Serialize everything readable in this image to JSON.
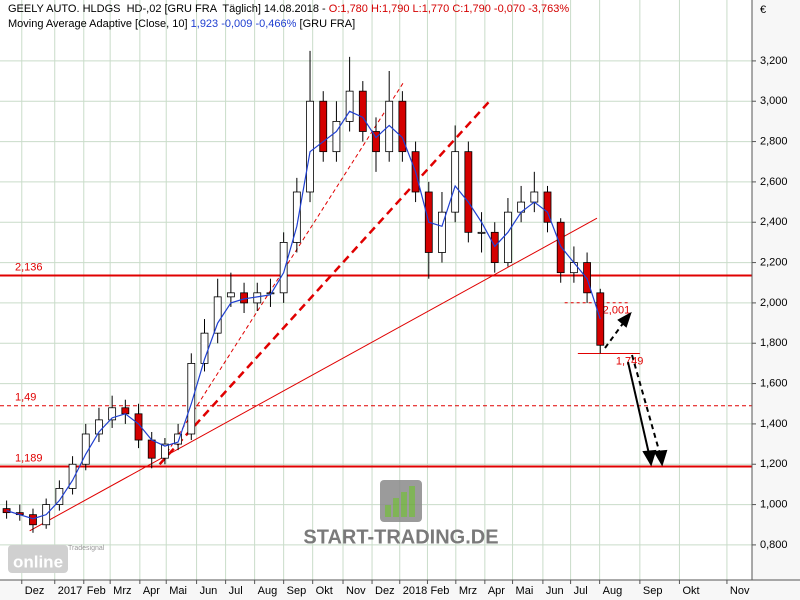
{
  "chart_data": {
    "type": "candlestick",
    "title": "GEELY AUTO. HLDGS  HD-,02 [GRU FRA  Täglich] 14.08.2018 -",
    "title_values": "O:1,780 H:1,790 L:1,770 C:1,790 -0,070 -3,763%",
    "y_unit": "€",
    "x": [
      1,
      3,
      5,
      7,
      9,
      11,
      13,
      15,
      17,
      19,
      21,
      23,
      25,
      27,
      29,
      31,
      33,
      35,
      37,
      39,
      41,
      43,
      45,
      47,
      49,
      51,
      53,
      55,
      57,
      59,
      61,
      63,
      65,
      67,
      69,
      71,
      73,
      75,
      77,
      79,
      81,
      83,
      85,
      87,
      89,
      91
    ],
    "open": [
      0.98,
      0.96,
      0.95,
      0.9,
      1.0,
      1.08,
      1.2,
      1.35,
      1.42,
      1.48,
      1.45,
      1.32,
      1.23,
      1.3,
      1.35,
      1.7,
      1.85,
      2.03,
      2.05,
      2.0,
      2.05,
      2.05,
      2.3,
      2.55,
      3.0,
      2.75,
      2.9,
      3.05,
      2.85,
      2.75,
      3.0,
      2.75,
      2.55,
      2.25,
      2.45,
      2.75,
      2.35,
      2.35,
      2.2,
      2.45,
      2.5,
      2.55,
      2.4,
      2.15,
      2.2,
      2.05
    ],
    "high": [
      1.02,
      1.0,
      0.98,
      1.03,
      1.12,
      1.24,
      1.4,
      1.48,
      1.54,
      1.52,
      1.5,
      1.36,
      1.33,
      1.4,
      1.75,
      1.92,
      2.12,
      2.15,
      2.1,
      2.1,
      2.12,
      2.35,
      2.62,
      3.25,
      3.05,
      3.0,
      3.22,
      3.1,
      2.92,
      3.15,
      3.05,
      2.8,
      2.6,
      2.55,
      2.88,
      2.8,
      2.45,
      2.4,
      2.52,
      2.58,
      2.65,
      2.58,
      2.42,
      2.28,
      2.25,
      2.07
    ],
    "low": [
      0.93,
      0.92,
      0.86,
      0.88,
      0.97,
      1.05,
      1.17,
      1.31,
      1.38,
      1.4,
      1.28,
      1.18,
      1.2,
      1.27,
      1.32,
      1.66,
      1.8,
      1.98,
      1.95,
      1.96,
      1.98,
      2.0,
      2.25,
      2.5,
      2.7,
      2.7,
      2.85,
      2.8,
      2.65,
      2.7,
      2.7,
      2.5,
      2.12,
      2.2,
      2.4,
      2.3,
      2.25,
      2.15,
      2.18,
      2.4,
      2.45,
      2.35,
      2.1,
      2.1,
      2.0,
      1.75
    ],
    "close": [
      0.96,
      0.95,
      0.9,
      1.0,
      1.08,
      1.2,
      1.35,
      1.42,
      1.48,
      1.45,
      1.32,
      1.23,
      1.3,
      1.35,
      1.7,
      1.85,
      2.03,
      2.05,
      2.0,
      2.05,
      2.05,
      2.3,
      2.55,
      3.0,
      2.75,
      2.9,
      3.05,
      2.85,
      2.75,
      3.0,
      2.75,
      2.55,
      2.25,
      2.45,
      2.75,
      2.35,
      2.35,
      2.2,
      2.45,
      2.5,
      2.55,
      2.4,
      2.15,
      2.2,
      2.05,
      1.79
    ],
    "up_color": "#ffffff",
    "down_color": "#d40000",
    "overlay": {
      "name": "Moving Average Adaptive [Close, 10]",
      "values_label": "1,923 -0,009 -0,466%",
      "source": "[GRU FRA]",
      "color": "#1f3fd0",
      "values": [
        0.97,
        0.95,
        0.93,
        0.95,
        1.02,
        1.12,
        1.25,
        1.36,
        1.43,
        1.45,
        1.4,
        1.32,
        1.29,
        1.31,
        1.5,
        1.72,
        1.9,
        2.0,
        2.02,
        2.03,
        2.04,
        2.15,
        2.38,
        2.75,
        2.8,
        2.85,
        2.95,
        2.92,
        2.82,
        2.88,
        2.82,
        2.65,
        2.4,
        2.38,
        2.58,
        2.5,
        2.4,
        2.28,
        2.35,
        2.45,
        2.5,
        2.45,
        2.28,
        2.2,
        2.12,
        1.92
      ]
    },
    "xlim": [
      0,
      114
    ],
    "xticks": [
      {
        "value": 3.3,
        "label": "Dez"
      },
      {
        "value": 8.3,
        "label": "2017"
      },
      {
        "value": 12.7,
        "label": "Feb"
      },
      {
        "value": 16.7,
        "label": "Mrz"
      },
      {
        "value": 21.2,
        "label": "Apr"
      },
      {
        "value": 25.2,
        "label": "Mai"
      },
      {
        "value": 29.8,
        "label": "Jun"
      },
      {
        "value": 34.2,
        "label": "Jul"
      },
      {
        "value": 38.6,
        "label": "Aug"
      },
      {
        "value": 43,
        "label": "Sep"
      },
      {
        "value": 47.4,
        "label": "Okt"
      },
      {
        "value": 52,
        "label": "Nov"
      },
      {
        "value": 56.4,
        "label": "Dez"
      },
      {
        "value": 60.6,
        "label": "2018"
      },
      {
        "value": 64.8,
        "label": "Feb"
      },
      {
        "value": 69.1,
        "label": "Mrz"
      },
      {
        "value": 73.5,
        "label": "Apr"
      },
      {
        "value": 77.7,
        "label": "Mai"
      },
      {
        "value": 82.3,
        "label": "Jun"
      },
      {
        "value": 86.5,
        "label": "Jul"
      },
      {
        "value": 90.9,
        "label": "Aug"
      },
      {
        "value": 97,
        "label": "Sep"
      },
      {
        "value": 103,
        "label": "Okt"
      },
      {
        "value": 110.2,
        "label": "Nov"
      }
    ],
    "ylim": [
      0.626,
      3.502
    ],
    "yticks": [
      {
        "value": 0.8,
        "label": "0,800"
      },
      {
        "value": 1.0,
        "label": "1,000"
      },
      {
        "value": 1.2,
        "label": "1,200"
      },
      {
        "value": 1.4,
        "label": "1,400"
      },
      {
        "value": 1.6,
        "label": "1,600"
      },
      {
        "value": 1.8,
        "label": "1,800"
      },
      {
        "value": 2.0,
        "label": "2,000"
      },
      {
        "value": 2.2,
        "label": "2,200"
      },
      {
        "value": 2.4,
        "label": "2,400"
      },
      {
        "value": 2.6,
        "label": "2,600"
      },
      {
        "value": 2.8,
        "label": "2,800"
      },
      {
        "value": 3.0,
        "label": "3,000"
      },
      {
        "value": 3.2,
        "label": "3,200"
      }
    ],
    "grid": true,
    "level_color": "#e00000",
    "levels": [
      {
        "value": 2.136,
        "label": "2,136",
        "style": "solid"
      },
      {
        "value": 1.49,
        "label": "1,49",
        "style": "dashed"
      },
      {
        "value": 1.189,
        "label": "1,189",
        "style": "solid"
      }
    ],
    "marks": [
      {
        "value": 2.001,
        "label": "2,001",
        "x_range": [
          85.6,
          95.5
        ],
        "style": "dashed"
      },
      {
        "value": 1.749,
        "label": "1,749",
        "x_range": [
          87.6,
          97
        ],
        "style": "solid"
      }
    ],
    "trendlines": [
      {
        "points": [
          [
            4.5,
            0.87
          ],
          [
            90.5,
            2.42
          ]
        ],
        "style": "thin"
      },
      {
        "points": [
          [
            24.2,
            1.2
          ],
          [
            61.3,
            3.1
          ]
        ],
        "style": "thin-dashed"
      },
      {
        "points": [
          [
            24.2,
            1.2
          ],
          [
            74.2,
            3.0
          ]
        ],
        "style": "thick-dashed"
      }
    ],
    "watermark": "START-TRADING.DE",
    "logo_brand": "Tradesignal",
    "logo": "online"
  }
}
